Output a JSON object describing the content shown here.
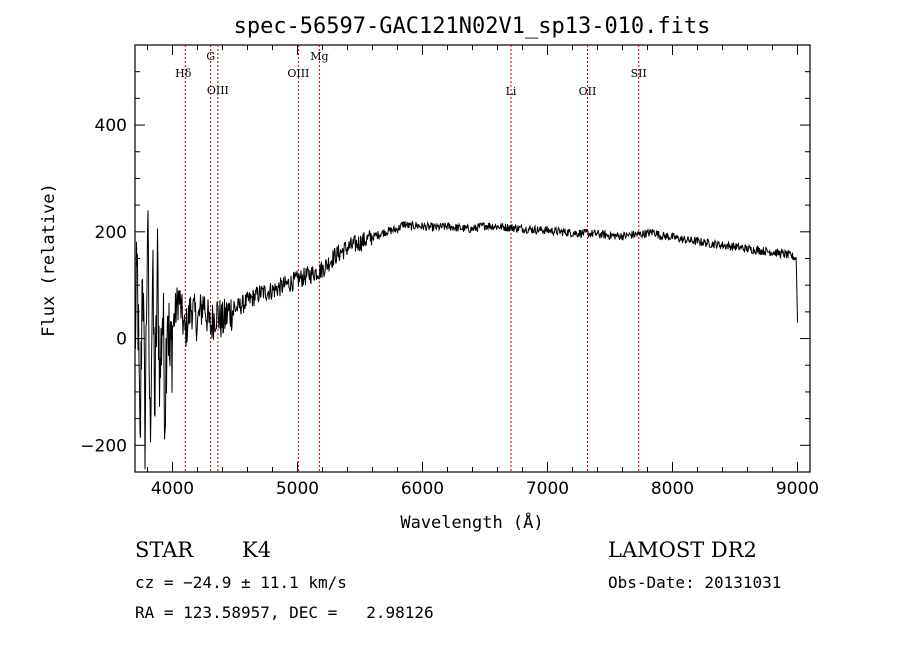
{
  "chart_data": {
    "type": "line",
    "title": "spec-56597-GAC121N02V1_sp13-010.fits",
    "xlabel": "Wavelength (Å)",
    "ylabel": "Flux (relative)",
    "xlim": [
      3700,
      9100
    ],
    "ylim": [
      -250,
      550
    ],
    "x_ticks": [
      4000,
      5000,
      6000,
      7000,
      8000,
      9000
    ],
    "y_ticks": [
      -200,
      0,
      200,
      400
    ],
    "grid": false,
    "series": [
      {
        "x": [
          3700,
          3720,
          3740,
          3760,
          3780,
          3800,
          3820,
          3840,
          3860,
          3880,
          3900,
          3920,
          3940,
          3960,
          3980,
          4000,
          4050,
          4100,
          4150,
          4200,
          4250,
          4300,
          4350,
          4400,
          4450,
          4500,
          4600,
          4700,
          4800,
          4900,
          5000,
          5100,
          5200,
          5300,
          5400,
          5500,
          5600,
          5700,
          5800,
          5850,
          5900,
          5950,
          6000,
          6100,
          6200,
          6300,
          6400,
          6500,
          6600,
          6700,
          6800,
          6900,
          7000,
          7100,
          7200,
          7300,
          7400,
          7500,
          7600,
          7700,
          7800,
          7850,
          7900,
          8000,
          8100,
          8200,
          8300,
          8400,
          8500,
          8600,
          8700,
          8800,
          8900,
          8950,
          8990,
          9000
        ],
        "y": [
          0,
          120,
          -230,
          170,
          -200,
          230,
          -180,
          110,
          -130,
          130,
          -80,
          60,
          -120,
          90,
          -60,
          20,
          80,
          10,
          60,
          30,
          70,
          20,
          50,
          30,
          50,
          55,
          70,
          85,
          90,
          100,
          110,
          120,
          130,
          155,
          170,
          180,
          190,
          200,
          205,
          215,
          210,
          212,
          210,
          208,
          210,
          207,
          205,
          212,
          210,
          208,
          206,
          204,
          203,
          200,
          198,
          197,
          196,
          193,
          192,
          195,
          197,
          200,
          193,
          190,
          185,
          182,
          178,
          175,
          172,
          168,
          165,
          162,
          158,
          155,
          150,
          30
        ]
      }
    ],
    "line_markers": [
      {
        "label": "Hδ",
        "x": 4102
      },
      {
        "label": "G",
        "x": 4305
      },
      {
        "label": "OIII",
        "x": 4363
      },
      {
        "label": "OIII",
        "x": 5007
      },
      {
        "label": "Mg",
        "x": 5175
      },
      {
        "label": "Li",
        "x": 6708
      },
      {
        "label": "OII",
        "x": 7320
      },
      {
        "label": "SII",
        "x": 7730
      }
    ]
  },
  "footer": {
    "class_label": "STAR",
    "subclass": "K4",
    "survey": "LAMOST DR2",
    "cz": "cz = −24.9 ± 11.1 km/s",
    "obs_date": "Obs-Date: 20131031",
    "coords": "RA = 123.58957, DEC =   2.98126"
  }
}
